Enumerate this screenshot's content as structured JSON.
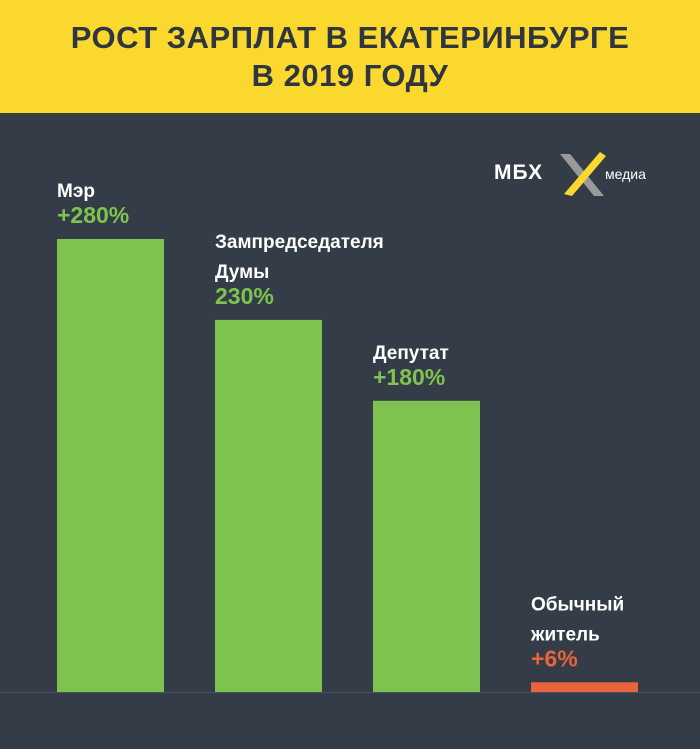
{
  "title_lines": [
    "РОСТ ЗАРПЛАТ В ЕКАТЕРИНБУРГЕ",
    "В 2019 ГОДУ"
  ],
  "logo": {
    "text": "МБХ",
    "sub": "медиа"
  },
  "colors": {
    "background": "#343d47",
    "header": "#fbd82e",
    "green": "#7ec34f",
    "red": "#e8643e",
    "white": "#ffffff"
  },
  "chart_data": {
    "type": "bar",
    "title": "РОСТ ЗАРПЛАТ В ЕКАТЕРИНБУРГЕ В 2019 ГОДУ",
    "categories": [
      "Мэр",
      "Зампредседателя Думы",
      "Депутат",
      "Обычный житель"
    ],
    "category_lines": [
      [
        "Мэр"
      ],
      [
        "Зампредседателя",
        "Думы"
      ],
      [
        "Депутат"
      ],
      [
        "Обычный",
        "житель"
      ]
    ],
    "values": [
      280,
      230,
      180,
      6
    ],
    "value_labels": [
      "+280%",
      "230%",
      "+180%",
      "+6%"
    ],
    "bar_colors": [
      "#7ec34f",
      "#7ec34f",
      "#7ec34f",
      "#e8643e"
    ],
    "value_label_colors": [
      "#7ec34f",
      "#7ec34f",
      "#7ec34f",
      "#e8643e"
    ],
    "unit": "%",
    "ylim": [
      0,
      280
    ],
    "grid": false,
    "legend": "none"
  }
}
